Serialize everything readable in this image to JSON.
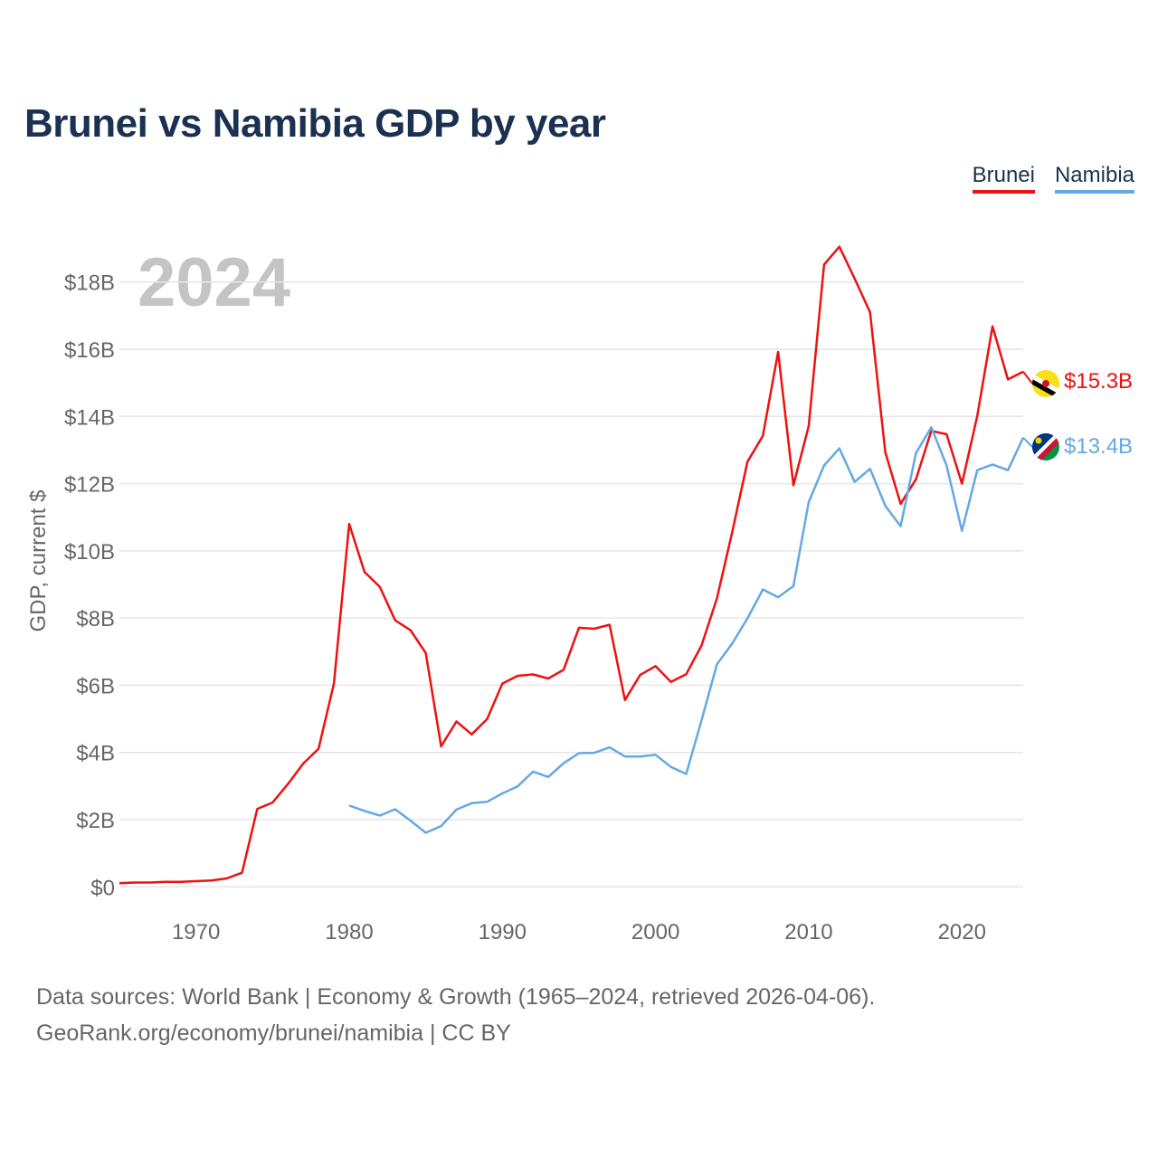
{
  "chart_data": {
    "type": "line",
    "title": "Brunei vs Namibia GDP by year",
    "ylabel": "GDP, current $",
    "xlabel": "",
    "year_label": "2024",
    "xlim": [
      1965,
      2024
    ],
    "ylim": [
      -0.8,
      19.5
    ],
    "yticks": [
      0,
      2,
      4,
      6,
      8,
      10,
      12,
      14,
      16,
      18
    ],
    "ytick_labels": [
      "$0",
      "$2B",
      "$4B",
      "$6B",
      "$8B",
      "$10B",
      "$12B",
      "$14B",
      "$16B",
      "$18B"
    ],
    "xticks": [
      1970,
      1980,
      1990,
      2000,
      2010,
      2020
    ],
    "xtick_labels": [
      "1970",
      "1980",
      "1990",
      "2000",
      "2010",
      "2020"
    ],
    "grid": true,
    "legend_position": "top-right",
    "series": [
      {
        "name": "Brunei",
        "color": "#ee1111",
        "end_label": "$15.3B",
        "x": [
          1965,
          1966,
          1967,
          1968,
          1969,
          1970,
          1971,
          1972,
          1973,
          1974,
          1975,
          1976,
          1977,
          1978,
          1979,
          1980,
          1981,
          1982,
          1983,
          1984,
          1985,
          1986,
          1987,
          1988,
          1989,
          1990,
          1991,
          1992,
          1993,
          1994,
          1995,
          1996,
          1997,
          1998,
          1999,
          2000,
          2001,
          2002,
          2003,
          2004,
          2005,
          2006,
          2007,
          2008,
          2009,
          2010,
          2011,
          2012,
          2013,
          2014,
          2015,
          2016,
          2017,
          2018,
          2019,
          2020,
          2021,
          2022,
          2023,
          2024
        ],
        "values": [
          0.11,
          0.13,
          0.13,
          0.15,
          0.15,
          0.17,
          0.19,
          0.25,
          0.42,
          2.32,
          2.51,
          3.06,
          3.67,
          4.11,
          6.05,
          10.8,
          9.37,
          8.93,
          7.93,
          7.64,
          6.96,
          4.18,
          4.92,
          4.54,
          4.99,
          6.05,
          6.28,
          6.32,
          6.2,
          6.46,
          7.71,
          7.68,
          7.8,
          5.56,
          6.31,
          6.57,
          6.1,
          6.33,
          7.18,
          8.58,
          10.55,
          12.65,
          13.42,
          15.92,
          11.95,
          13.71,
          18.52,
          19.05,
          18.1,
          17.1,
          12.93,
          11.4,
          12.13,
          13.57,
          13.47,
          12.0,
          14.01,
          16.68,
          15.1,
          15.33
        ]
      },
      {
        "name": "Namibia",
        "color": "#65a8e5",
        "end_label": "$13.4B",
        "x": [
          1980,
          1981,
          1982,
          1983,
          1984,
          1985,
          1986,
          1987,
          1988,
          1989,
          1990,
          1991,
          1992,
          1993,
          1994,
          1995,
          1996,
          1997,
          1998,
          1999,
          2000,
          2001,
          2002,
          2003,
          2004,
          2005,
          2006,
          2007,
          2008,
          2009,
          2010,
          2011,
          2012,
          2013,
          2014,
          2015,
          2016,
          2017,
          2018,
          2019,
          2020,
          2021,
          2022,
          2023,
          2024
        ],
        "values": [
          2.42,
          2.26,
          2.12,
          2.31,
          1.97,
          1.61,
          1.81,
          2.3,
          2.49,
          2.53,
          2.78,
          2.99,
          3.43,
          3.27,
          3.68,
          3.98,
          3.99,
          4.15,
          3.88,
          3.88,
          3.93,
          3.57,
          3.36,
          4.95,
          6.62,
          7.24,
          7.99,
          8.85,
          8.62,
          8.95,
          11.45,
          12.54,
          13.05,
          12.05,
          12.44,
          11.34,
          10.73,
          12.91,
          13.68,
          12.54,
          10.59,
          12.4,
          12.57,
          12.4,
          13.37
        ]
      }
    ]
  },
  "legend": {
    "brunei": "Brunei",
    "namibia": "Namibia"
  },
  "footer": {
    "line1": "Data sources: World Bank | Economy & Growth (1965–2024, retrieved 2026-04-06).",
    "line2": "GeoRank.org/economy/brunei/namibia | CC BY"
  },
  "icons": {
    "brunei_flag": "brunei-flag-icon",
    "namibia_flag": "namibia-flag-icon"
  }
}
